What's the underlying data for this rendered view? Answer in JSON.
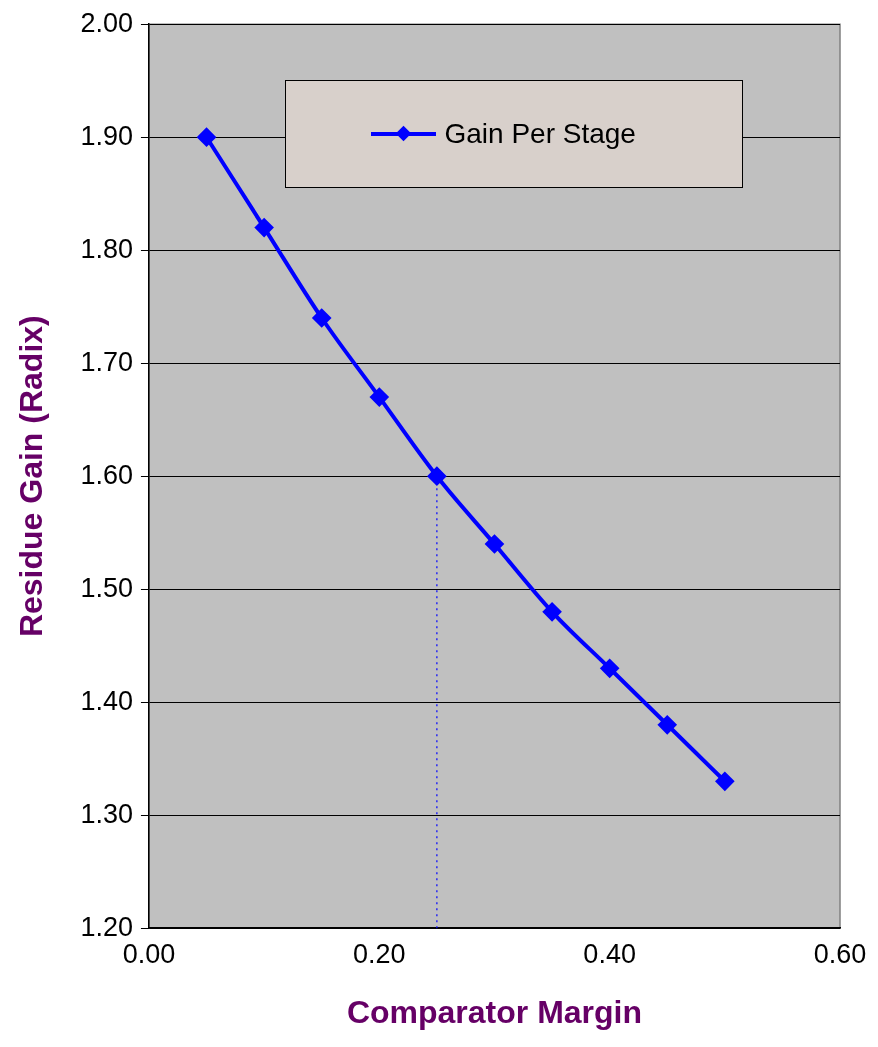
{
  "chart_data": {
    "type": "line",
    "xlabel": "Comparator Margin",
    "ylabel": "Residue Gain (Radix)",
    "x": [
      0.05,
      0.1,
      0.15,
      0.2,
      0.25,
      0.3,
      0.35,
      0.4,
      0.45,
      0.5
    ],
    "series": [
      {
        "name": "Gain Per Stage",
        "color": "#0000ff",
        "values": [
          1.9,
          1.82,
          1.74,
          1.67,
          1.6,
          1.54,
          1.48,
          1.43,
          1.38,
          1.33
        ]
      }
    ],
    "xlim": [
      0,
      0.6
    ],
    "xticks": [
      {
        "value": 0,
        "label": "0.00"
      },
      {
        "value": 0.2,
        "label": "0.20"
      },
      {
        "value": 0.4,
        "label": "0.40"
      },
      {
        "value": 0.6,
        "label": "0.60"
      }
    ],
    "ylim": [
      1.2,
      2.0
    ],
    "yticks": [
      {
        "value": 1.2,
        "label": "1.20"
      },
      {
        "value": 1.3,
        "label": "1.30"
      },
      {
        "value": 1.4,
        "label": "1.40"
      },
      {
        "value": 1.5,
        "label": "1.50"
      },
      {
        "value": 1.6,
        "label": "1.60"
      },
      {
        "value": 1.7,
        "label": "1.70"
      },
      {
        "value": 1.8,
        "label": "1.80"
      },
      {
        "value": 1.9,
        "label": "1.90"
      },
      {
        "value": 2.0,
        "label": "2.00"
      }
    ],
    "ref_lines": [
      {
        "axis": "x",
        "value": 0.25,
        "color": "#0000ff",
        "line_style": "dotted"
      }
    ],
    "grid": "y",
    "legend": "top",
    "marker": "diamond",
    "line_style": "solid"
  }
}
